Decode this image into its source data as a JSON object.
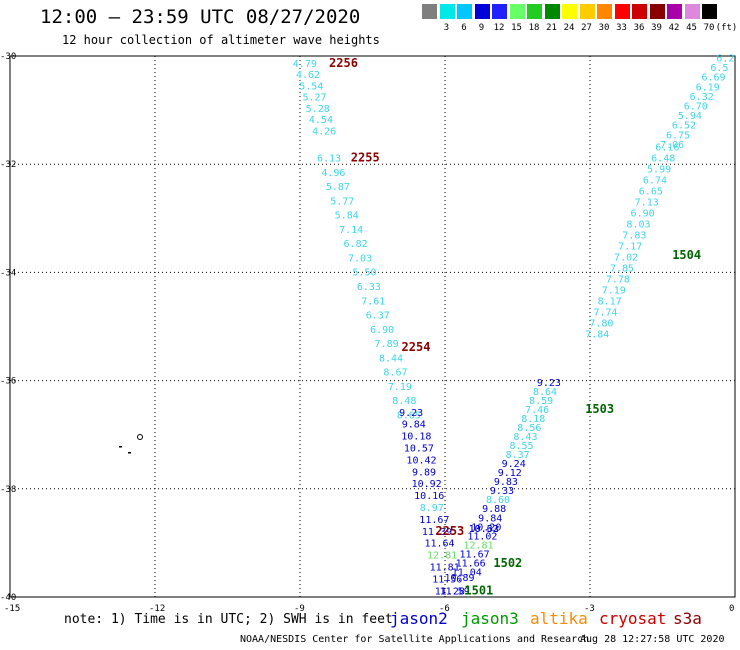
{
  "header": {
    "title": "12:00 – 23:59 UTC 08/27/2020",
    "subtitle": "12 hour collection of altimeter wave heights"
  },
  "color_scale": [
    {
      "label": "",
      "color": "#7f7f7f"
    },
    {
      "label": "3",
      "color": "#00e8e8"
    },
    {
      "label": "6",
      "color": "#00c8ff"
    },
    {
      "label": "9",
      "color": "#0000d8"
    },
    {
      "label": "12",
      "color": "#2020ff"
    },
    {
      "label": "15",
      "color": "#66ff66"
    },
    {
      "label": "18",
      "color": "#22cc22"
    },
    {
      "label": "21",
      "color": "#008800"
    },
    {
      "label": "24",
      "color": "#ffff00"
    },
    {
      "label": "27",
      "color": "#ffcc00"
    },
    {
      "label": "30",
      "color": "#ff8800"
    },
    {
      "label": "33",
      "color": "#ff0000"
    },
    {
      "label": "36",
      "color": "#cc0000"
    },
    {
      "label": "39",
      "color": "#880000"
    },
    {
      "label": "42",
      "color": "#aa00aa"
    },
    {
      "label": "45",
      "color": "#dd88dd"
    },
    {
      "label": "70",
      "color": "#000000"
    },
    {
      "label": "(ft)",
      "color": null
    }
  ],
  "map": {
    "lat_ticks": [
      "-30",
      "-32",
      "-34",
      "-36",
      "-38",
      "-40"
    ],
    "lon_ticks": [
      "-15",
      "-12",
      "-9",
      "-6",
      "-3",
      "0"
    ],
    "lon_range": [
      -15,
      0
    ],
    "lat_range": [
      -40,
      -30
    ]
  },
  "tracks": [
    {
      "id": "t2256",
      "time": "2256",
      "time_color": "#8b0000",
      "time_lon": -8.1,
      "time_lat": -30.2,
      "start_lon": -8.9,
      "start_lat": -30.2,
      "end_lon": -8.5,
      "end_lat": -31.45,
      "values": [
        {
          "v": "4.79",
          "c": "#3fd6e6"
        },
        {
          "v": "4.62",
          "c": "#3fd6e6"
        },
        {
          "v": "5.54",
          "c": "#3fd6e6"
        },
        {
          "v": "5.27",
          "c": "#3fd6e6"
        },
        {
          "v": "5.28",
          "c": "#3fd6e6"
        },
        {
          "v": "4.54",
          "c": "#3fd6e6"
        },
        {
          "v": "4.26",
          "c": "#3fd6e6"
        }
      ]
    },
    {
      "id": "t2255",
      "time": "2255",
      "time_color": "#8b0000",
      "time_lon": -7.65,
      "time_lat": -31.95,
      "start_lon": -8.4,
      "start_lat": -31.95,
      "end_lon": -6.75,
      "end_lat": -36.7,
      "values": [
        {
          "v": "6.13",
          "c": "#3fd6e6"
        },
        {
          "v": "4.96",
          "c": "#3fd6e6"
        },
        {
          "v": "5.87",
          "c": "#3fd6e6"
        },
        {
          "v": "5.77",
          "c": "#3fd6e6"
        },
        {
          "v": "5.84",
          "c": "#3fd6e6"
        },
        {
          "v": "7.14",
          "c": "#3fd6e6"
        },
        {
          "v": "6.82",
          "c": "#3fd6e6"
        },
        {
          "v": "7.03",
          "c": "#3fd6e6"
        },
        {
          "v": "5.50",
          "c": "#3fd6e6"
        },
        {
          "v": "6.33",
          "c": "#3fd6e6"
        },
        {
          "v": "7.61",
          "c": "#3fd6e6"
        },
        {
          "v": "6.37",
          "c": "#3fd6e6"
        },
        {
          "v": "6.90",
          "c": "#3fd6e6"
        },
        {
          "v": "7.89",
          "c": "#3fd6e6"
        },
        {
          "v": "8.44",
          "c": "#3fd6e6"
        },
        {
          "v": "8.67",
          "c": "#3fd6e6"
        },
        {
          "v": "7.19",
          "c": "#3fd6e6"
        },
        {
          "v": "8.48",
          "c": "#3fd6e6"
        },
        {
          "v": "8.65",
          "c": "#3fd6e6"
        }
      ]
    },
    {
      "id": "t2254",
      "time": "2254",
      "time_color": "#8b0000",
      "time_lon": -6.6,
      "time_lat": -35.45,
      "start_lon": -6.7,
      "start_lat": -36.65,
      "end_lon": -5.9,
      "end_lat": -39.95,
      "values": [
        {
          "v": "9.23",
          "c": "#0000cc"
        },
        {
          "v": "9.84",
          "c": "#0000cc"
        },
        {
          "v": "10.18",
          "c": "#0000cc"
        },
        {
          "v": "10.57",
          "c": "#0000cc"
        },
        {
          "v": "10.42",
          "c": "#0000cc"
        },
        {
          "v": "9.89",
          "c": "#0000cc"
        },
        {
          "v": "10.92",
          "c": "#0000cc"
        },
        {
          "v": "10.16",
          "c": "#0000cc"
        },
        {
          "v": "8.97",
          "c": "#3fd6e6"
        },
        {
          "v": "11.67",
          "c": "#0000cc"
        },
        {
          "v": "11.39",
          "c": "#0000cc"
        },
        {
          "v": "11.64",
          "c": "#0000cc"
        },
        {
          "v": "12.81",
          "c": "#66dd66"
        },
        {
          "v": "11.81",
          "c": "#0000cc"
        },
        {
          "v": "11.56",
          "c": "#0000cc"
        },
        {
          "v": "11.28",
          "c": "#0000cc"
        }
      ]
    },
    {
      "id": "t2253",
      "time": "2253",
      "time_color": "#8b0000",
      "time_lon": -5.9,
      "time_lat": -38.85,
      "start_lon": -5.2,
      "start_lat": -38.8,
      "end_lon": -5.2,
      "end_lat": -38.8,
      "values": [
        {
          "v": "10.32",
          "c": "#0000cc"
        },
        {
          "v": "10.63",
          "c": "#0000cc"
        }
      ]
    },
    {
      "id": "t1501",
      "time": "1501",
      "time_color": "#006600",
      "time_lon": -5.3,
      "time_lat": -39.95,
      "start_lon": -5.8,
      "start_lat": -39.95,
      "end_lon": -5.7,
      "end_lat": -39.7,
      "values": [
        {
          "v": "11.59",
          "c": "#0000cc"
        },
        {
          "v": "10.89",
          "c": "#0000cc"
        }
      ]
    },
    {
      "id": "t1502",
      "time": "1502",
      "time_color": "#006600",
      "time_lon": -4.7,
      "time_lat": -39.45,
      "start_lon": -5.55,
      "start_lat": -39.6,
      "end_lon": -3.85,
      "end_lat": -36.1,
      "values": [
        {
          "v": "11.04",
          "c": "#0000cc"
        },
        {
          "v": "11.66",
          "c": "#0000cc"
        },
        {
          "v": "11.67",
          "c": "#0000cc"
        },
        {
          "v": "12.81",
          "c": "#66dd66"
        },
        {
          "v": "11.02",
          "c": "#0000cc"
        },
        {
          "v": "10.20",
          "c": "#0000cc"
        },
        {
          "v": "9.84",
          "c": "#0000cc"
        },
        {
          "v": "9.88",
          "c": "#0000cc"
        },
        {
          "v": "8.60",
          "c": "#3fd6e6"
        },
        {
          "v": "9.33",
          "c": "#0000cc"
        },
        {
          "v": "9.83",
          "c": "#0000cc"
        },
        {
          "v": "9.12",
          "c": "#0000cc"
        },
        {
          "v": "9.24",
          "c": "#0000cc"
        },
        {
          "v": "8.37",
          "c": "#3fd6e6"
        },
        {
          "v": "8.55",
          "c": "#3fd6e6"
        },
        {
          "v": "8.43",
          "c": "#3fd6e6"
        },
        {
          "v": "8.56",
          "c": "#3fd6e6"
        },
        {
          "v": "8.18",
          "c": "#3fd6e6"
        },
        {
          "v": "7.46",
          "c": "#3fd6e6"
        },
        {
          "v": "8.59",
          "c": "#3fd6e6"
        },
        {
          "v": "8.64",
          "c": "#3fd6e6"
        },
        {
          "v": "9.23",
          "c": "#0000cc"
        }
      ]
    },
    {
      "id": "t1503",
      "time": "1503",
      "time_color": "#006600",
      "time_lon": -2.8,
      "time_lat": -36.6,
      "start_lon": -2.85,
      "start_lat": -35.2,
      "end_lon": -1.4,
      "end_lat": -31.75,
      "values": [
        {
          "v": "7.84",
          "c": "#3fd6e6"
        },
        {
          "v": "7.80",
          "c": "#3fd6e6"
        },
        {
          "v": "7.74",
          "c": "#3fd6e6"
        },
        {
          "v": "8.17",
          "c": "#3fd6e6"
        },
        {
          "v": "7.19",
          "c": "#3fd6e6"
        },
        {
          "v": "7.78",
          "c": "#3fd6e6"
        },
        {
          "v": "7.85",
          "c": "#3fd6e6"
        },
        {
          "v": "7.02",
          "c": "#3fd6e6"
        },
        {
          "v": "7.17",
          "c": "#3fd6e6"
        },
        {
          "v": "7.83",
          "c": "#3fd6e6"
        },
        {
          "v": "8.03",
          "c": "#3fd6e6"
        },
        {
          "v": "6.90",
          "c": "#3fd6e6"
        },
        {
          "v": "7.13",
          "c": "#3fd6e6"
        },
        {
          "v": "6.65",
          "c": "#3fd6e6"
        },
        {
          "v": "6.74",
          "c": "#3fd6e6"
        },
        {
          "v": "5.99",
          "c": "#3fd6e6"
        },
        {
          "v": "6.48",
          "c": "#3fd6e6"
        },
        {
          "v": "6.16",
          "c": "#3fd6e6"
        }
      ]
    },
    {
      "id": "t1504",
      "time": "1504",
      "time_color": "#006600",
      "time_lon": -1.0,
      "time_lat": -33.75,
      "start_lon": -1.3,
      "start_lat": -31.7,
      "end_lon": -0.2,
      "end_lat": -30.1,
      "values": [
        {
          "v": "7.06",
          "c": "#3fd6e6"
        },
        {
          "v": "6.75",
          "c": "#3fd6e6"
        },
        {
          "v": "6.52",
          "c": "#3fd6e6"
        },
        {
          "v": "5.94",
          "c": "#3fd6e6"
        },
        {
          "v": "6.70",
          "c": "#3fd6e6"
        },
        {
          "v": "6.32",
          "c": "#3fd6e6"
        },
        {
          "v": "6.19",
          "c": "#3fd6e6"
        },
        {
          "v": "6.69",
          "c": "#3fd6e6"
        },
        {
          "v": "6.5",
          "c": "#3fd6e6"
        },
        {
          "v": "6.2",
          "c": "#3fd6e6"
        }
      ]
    }
  ],
  "legend": {
    "note": "note: 1) Time is in UTC; 2) SWH is in feet",
    "satellites": [
      {
        "name": "jason2",
        "color": "#0000cc"
      },
      {
        "name": "jason3",
        "color": "#009900"
      },
      {
        "name": "altika",
        "color": "#ff8800"
      },
      {
        "name": "cryosat",
        "color": "#cc0000"
      },
      {
        "name": "s3a",
        "color": "#8b0000"
      }
    ]
  },
  "footer": {
    "credit": "NOAA/NESDIS Center for Satellite Applications and Research",
    "timestamp": "Aug 28 12:27:58 UTC 2020"
  }
}
